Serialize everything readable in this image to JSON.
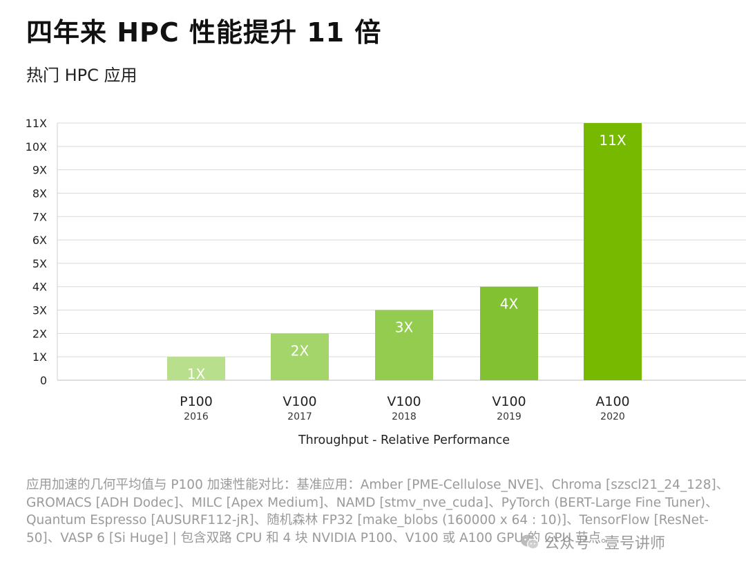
{
  "header": {
    "title": "四年来 HPC 性能提升 11 倍",
    "subtitle": "热门 HPC 应用"
  },
  "chart_data": {
    "type": "bar",
    "title": "四年来 HPC 性能提升 11 倍",
    "subtitle": "热门 HPC 应用",
    "xlabel": "Throughput - Relative Performance",
    "ylabel": "",
    "ylim": [
      0,
      11
    ],
    "grid": true,
    "yticks": [
      "0",
      "1X",
      "2X",
      "3X",
      "4X",
      "5X",
      "6X",
      "7X",
      "8X",
      "9X",
      "10X",
      "11X"
    ],
    "categories": [
      "P100",
      "V100",
      "V100",
      "V100",
      "A100"
    ],
    "years": [
      "2016",
      "2017",
      "2018",
      "2019",
      "2020"
    ],
    "values": [
      1,
      2,
      3,
      4,
      11
    ],
    "value_labels": [
      "1X",
      "2X",
      "3X",
      "4X",
      "11X"
    ],
    "colors": [
      "#b8df8c",
      "#a3d56b",
      "#93cc4e",
      "#82c232",
      "#76b900"
    ]
  },
  "footnote": "应用加速的几何平均值与 P100 加速性能对比：基准应用：Amber [PME-Cellulose_NVE]、Chroma [szscl21_24_128]、GROMACS [ADH Dodec]、MILC [Apex Medium]、NAMD [stmv_nve_cuda]、PyTorch (BERT-Large Fine Tuner)、Quantum Espresso [AUSURF112-jR]、随机森林 FP32 [make_blobs (160000 x 64 : 10)]、TensorFlow [ResNet-50]、VASP 6 [Si Huge] | 包含双路 CPU 和 4 块 NVIDIA P100、V100 或 A100 GPU 的 GPU 节点。",
  "watermark": {
    "text": "公众号 · 壹号讲师",
    "icon": "wechat-icon"
  }
}
